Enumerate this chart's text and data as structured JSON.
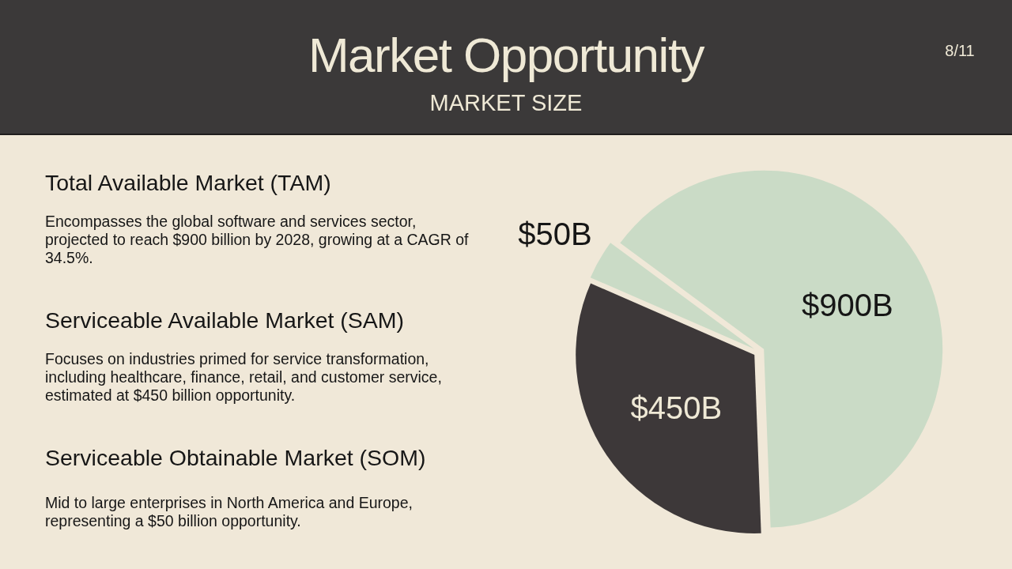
{
  "chart_data": {
    "type": "pie",
    "title": "Market Opportunity",
    "subtitle": "MARKET SIZE",
    "categories": [
      null,
      null,
      null
    ],
    "values": [
      900,
      450,
      50
    ],
    "colors": [
      "#cadbc6",
      "#3d3839",
      "#cadbc6"
    ],
    "value_labels": [
      "$900B",
      "$450B",
      "$50B"
    ],
    "annotations": [
      "Total Available Market (TAM)",
      "Encompasses the global software and services sector, projected to reach $900 billion by 2028, growing at a CAGR of 34.5%.",
      "Serviceable Available Market (SAM)",
      "Focuses on industries primed for service transformation, including healthcare, finance, retail, and customer service, estimated at $450 billion opportunity.",
      "Serviceable Obtainable Market (SOM)",
      "Mid to large enterprises in North America and Europe, representing a $50 billion opportunity.",
      "8/11"
    ]
  }
}
